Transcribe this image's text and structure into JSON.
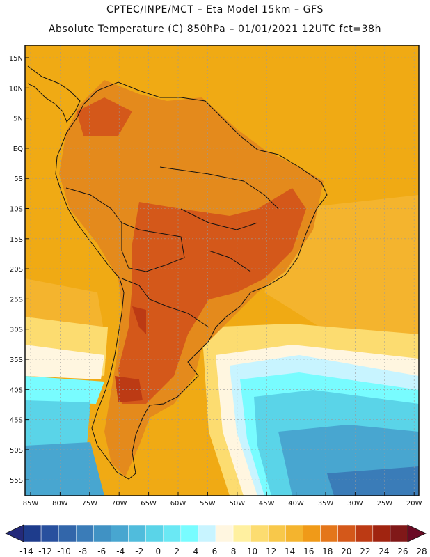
{
  "header": {
    "line1": "CPTEC/INPE/MCT –  Eta Model 15km – GFS",
    "line2": "Absolute Temperature (C) 850hPa – 01/01/2021 12UTC fct=38h"
  },
  "map": {
    "lat_labels": [
      "15N",
      "10N",
      "5N",
      "EQ",
      "5S",
      "10S",
      "15S",
      "20S",
      "25S",
      "30S",
      "35S",
      "40S",
      "45S",
      "50S",
      "55S"
    ],
    "lon_labels": [
      "85W",
      "80W",
      "75W",
      "70W",
      "65W",
      "60W",
      "55W",
      "50W",
      "45W",
      "40W",
      "35W",
      "30W",
      "25W",
      "20W"
    ],
    "land_color": "#e06a14",
    "ocean_color": "#f0aa14"
  },
  "colorbar": {
    "labels": [
      "-14",
      "-12",
      "-10",
      "-8",
      "-6",
      "-4",
      "-2",
      "0",
      "2",
      "4",
      "6",
      "8",
      "10",
      "12",
      "14",
      "16",
      "18",
      "20",
      "22",
      "24",
      "26",
      "28"
    ],
    "low_color": "#242a7a",
    "high_color": "#6a0a24",
    "colors": [
      "#1e3c8c",
      "#28509e",
      "#3266aa",
      "#3a7cb8",
      "#4092c4",
      "#48a6d0",
      "#50bcdc",
      "#5ad4e8",
      "#6ae8f4",
      "#78fcff",
      "#c8f4ff",
      "#fff6e0",
      "#fff0a0",
      "#fcdc70",
      "#f8c84a",
      "#f4b42e",
      "#f09a18",
      "#e4761a",
      "#d4581a",
      "#bc3a14",
      "#a02410",
      "#801818"
    ]
  }
}
